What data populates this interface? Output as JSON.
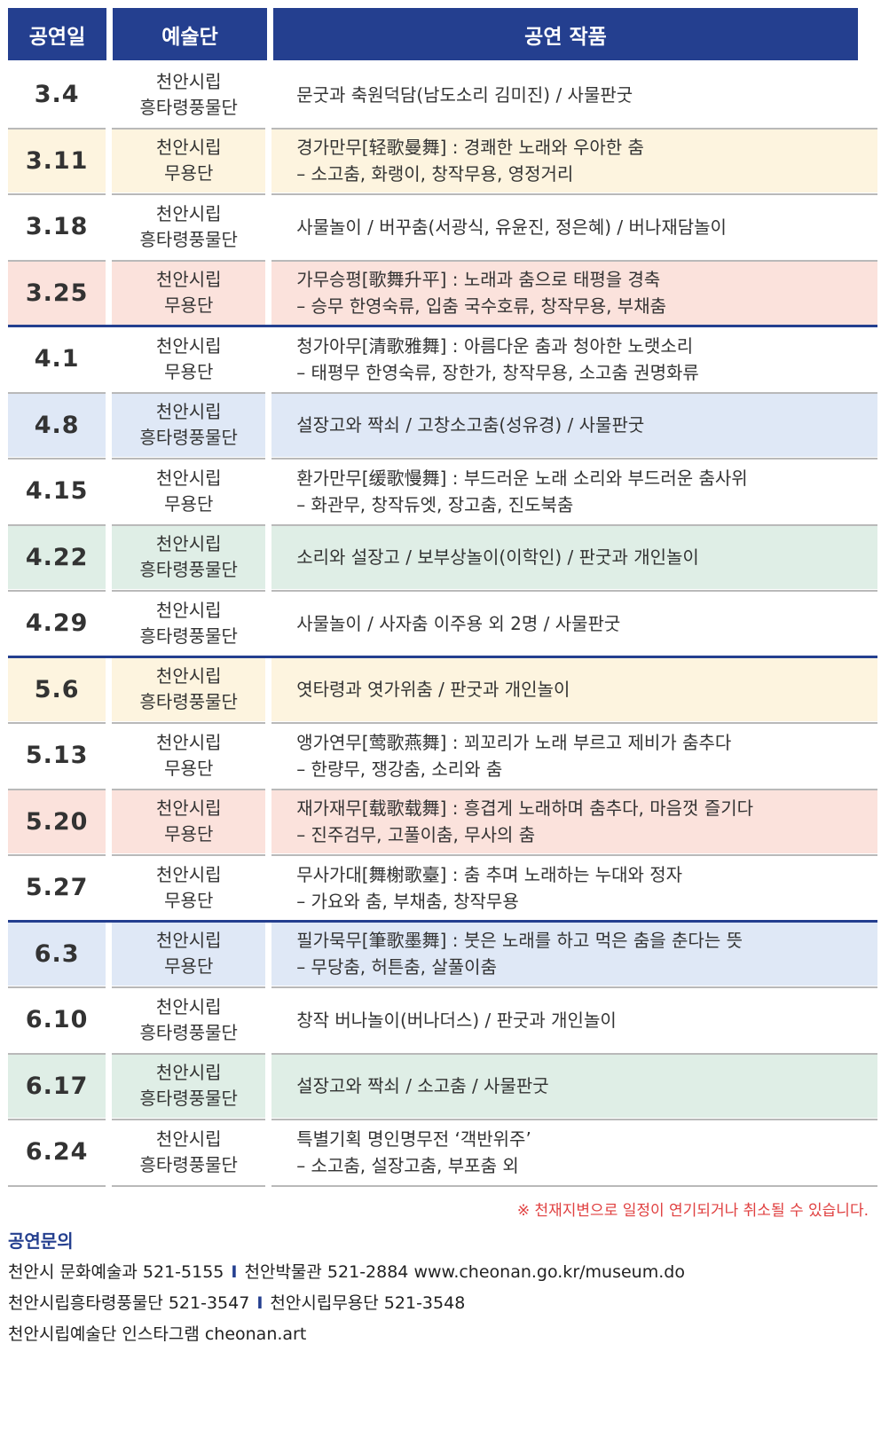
{
  "header": {
    "col1": "공연일",
    "col2": "예술단",
    "col3": "공연 작품"
  },
  "rows": [
    {
      "date": "3.4",
      "troupe1": "천안시립",
      "troupe2": "흥타령풍물단",
      "line1": "문굿과 축원덕담(남도소리 김미진) / 사물판굿",
      "line2": ""
    },
    {
      "date": "3.11",
      "troupe1": "천안시립",
      "troupe2": "무용단",
      "line1": "경가만무[轻歌曼舞] : 경쾌한 노래와 우아한 춤",
      "line2": "– 소고춤, 화랭이, 창작무용, 영정거리"
    },
    {
      "date": "3.18",
      "troupe1": "천안시립",
      "troupe2": "흥타령풍물단",
      "line1": "사물놀이 / 버꾸춤(서광식, 유윤진, 정은혜) / 버나재담놀이",
      "line2": ""
    },
    {
      "date": "3.25",
      "troupe1": "천안시립",
      "troupe2": "무용단",
      "line1": "가무승평[歌舞升平] : 노래과 춤으로 태평을 경축",
      "line2": "– 승무 한영숙류, 입춤 국수호류, 창작무용, 부채춤"
    },
    {
      "date": "4.1",
      "troupe1": "천안시립",
      "troupe2": "무용단",
      "line1": "청가아무[清歌雅舞] : 아름다운 춤과 청아한 노랫소리",
      "line2": "– 태평무 한영숙류, 장한가, 창작무용, 소고춤 권명화류"
    },
    {
      "date": "4.8",
      "troupe1": "천안시립",
      "troupe2": "흥타령풍물단",
      "line1": "설장고와 짝쇠 / 고창소고춤(성유경) / 사물판굿",
      "line2": ""
    },
    {
      "date": "4.15",
      "troupe1": "천안시립",
      "troupe2": "무용단",
      "line1": "환가만무[缓歌慢舞] : 부드러운 노래 소리와 부드러운 춤사위",
      "line2": "– 화관무, 창작듀엣, 장고춤, 진도북춤"
    },
    {
      "date": "4.22",
      "troupe1": "천안시립",
      "troupe2": "흥타령풍물단",
      "line1": "소리와 설장고 / 보부상놀이(이학인) / 판굿과 개인놀이",
      "line2": ""
    },
    {
      "date": "4.29",
      "troupe1": "천안시립",
      "troupe2": "흥타령풍물단",
      "line1": "사물놀이 / 사자춤 이주용 외 2명 / 사물판굿",
      "line2": ""
    },
    {
      "date": "5.6",
      "troupe1": "천안시립",
      "troupe2": "흥타령풍물단",
      "line1": "엿타령과 엿가위춤 / 판굿과 개인놀이",
      "line2": ""
    },
    {
      "date": "5.13",
      "troupe1": "천안시립",
      "troupe2": "무용단",
      "line1": "앵가연무[莺歌燕舞] : 꾀꼬리가 노래 부르고 제비가 춤추다",
      "line2": "– 한량무, 쟁강춤, 소리와 춤"
    },
    {
      "date": "5.20",
      "troupe1": "천안시립",
      "troupe2": "무용단",
      "line1": "재가재무[载歌载舞] : 흥겹게 노래하며 춤추다, 마음껏 즐기다",
      "line2": "– 진주검무, 고풀이춤, 무사의 춤"
    },
    {
      "date": "5.27",
      "troupe1": "천안시립",
      "troupe2": "무용단",
      "line1": "무사가대[舞榭歌臺] : 춤 추며 노래하는 누대와 정자",
      "line2": "– 가요와 춤, 부채춤, 창작무용"
    },
    {
      "date": "6.3",
      "troupe1": "천안시립",
      "troupe2": "무용단",
      "line1": "필가묵무[筆歌墨舞] : 붓은 노래를 하고 먹은 춤을 춘다는 뜻",
      "line2": "– 무당춤, 허튼춤, 살풀이춤"
    },
    {
      "date": "6.10",
      "troupe1": "천안시립",
      "troupe2": "흥타령풍물단",
      "line1": "창작 버나놀이(버나더스) / 판굿과 개인놀이",
      "line2": ""
    },
    {
      "date": "6.17",
      "troupe1": "천안시립",
      "troupe2": "흥타령풍물단",
      "line1": "설장고와 짝쇠 / 소고춤 / 사물판굿",
      "line2": ""
    },
    {
      "date": "6.24",
      "troupe1": "천안시립",
      "troupe2": "흥타령풍물단",
      "line1": "특별기획 명인명무전 ‘객반위주’",
      "line2": "– 소고춤, 설장고춤, 부포춤 외"
    }
  ],
  "notice": "※ 천재지변으로 일정이 연기되거나 취소될 수 있습니다.",
  "contact": {
    "title": "공연문의",
    "line1a": "천안시 문화예술과 521-5155",
    "line1b": "천안박물관 521-2884 www.cheonan.go.kr/museum.do",
    "line2a": "천안시립흥타령풍물단 521-3547",
    "line2b": "천안시립무용단 521-3548",
    "line3": "천안시립예술단 인스타그램 cheonan.art",
    "separator": "I"
  },
  "colors": {
    "navy": "#243f8f",
    "yellow": "#fdf4df",
    "pink": "#fbe2dc",
    "blue": "#dfe8f6",
    "green": "#dfeee6",
    "notice": "#e04040"
  }
}
